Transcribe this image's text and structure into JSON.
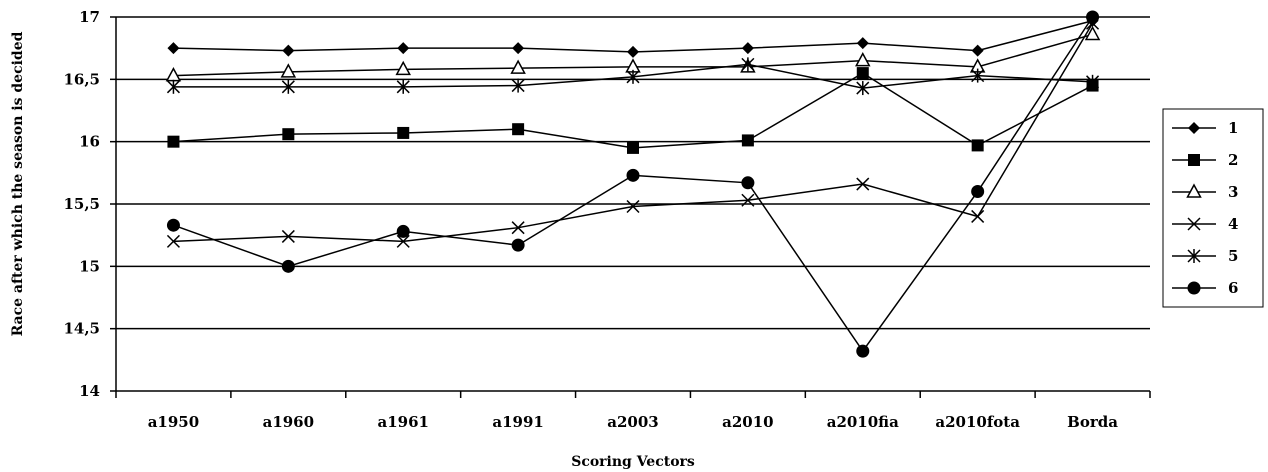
{
  "chart_data": {
    "type": "line",
    "title": "",
    "xlabel": "Scoring Vectors",
    "ylabel": "Race after which the season is decided",
    "ylim": [
      14,
      17
    ],
    "yticks": [
      "14",
      "14,5",
      "15",
      "15,5",
      "16",
      "16,5",
      "17"
    ],
    "ytick_values": [
      14,
      14.5,
      15,
      15.5,
      16,
      16.5,
      17
    ],
    "grid": "horizontal",
    "legend_position": "right",
    "categories": [
      "a1950",
      "a1960",
      "a1961",
      "a1991",
      "a2003",
      "a2010",
      "a2010fia",
      "a2010fota",
      "Borda"
    ],
    "series": [
      {
        "name": "1",
        "marker": "diamond",
        "values": [
          16.75,
          16.73,
          16.75,
          16.75,
          16.72,
          16.75,
          16.79,
          16.73,
          16.97
        ]
      },
      {
        "name": "2",
        "marker": "square",
        "values": [
          16.0,
          16.06,
          16.07,
          16.1,
          15.95,
          16.01,
          16.55,
          15.97,
          16.45
        ]
      },
      {
        "name": "3",
        "marker": "triangle",
        "values": [
          16.53,
          16.56,
          16.58,
          16.59,
          16.6,
          16.6,
          16.65,
          16.6,
          16.86
        ]
      },
      {
        "name": "4",
        "marker": "x",
        "values": [
          15.2,
          15.24,
          15.2,
          15.31,
          15.48,
          15.53,
          15.66,
          15.4,
          16.95
        ]
      },
      {
        "name": "5",
        "marker": "star",
        "values": [
          16.44,
          16.44,
          16.44,
          16.45,
          16.52,
          16.62,
          16.43,
          16.53,
          16.48
        ]
      },
      {
        "name": "6",
        "marker": "circle",
        "values": [
          15.33,
          15.0,
          15.28,
          15.17,
          15.73,
          15.67,
          14.32,
          15.6,
          17.0
        ]
      }
    ]
  }
}
